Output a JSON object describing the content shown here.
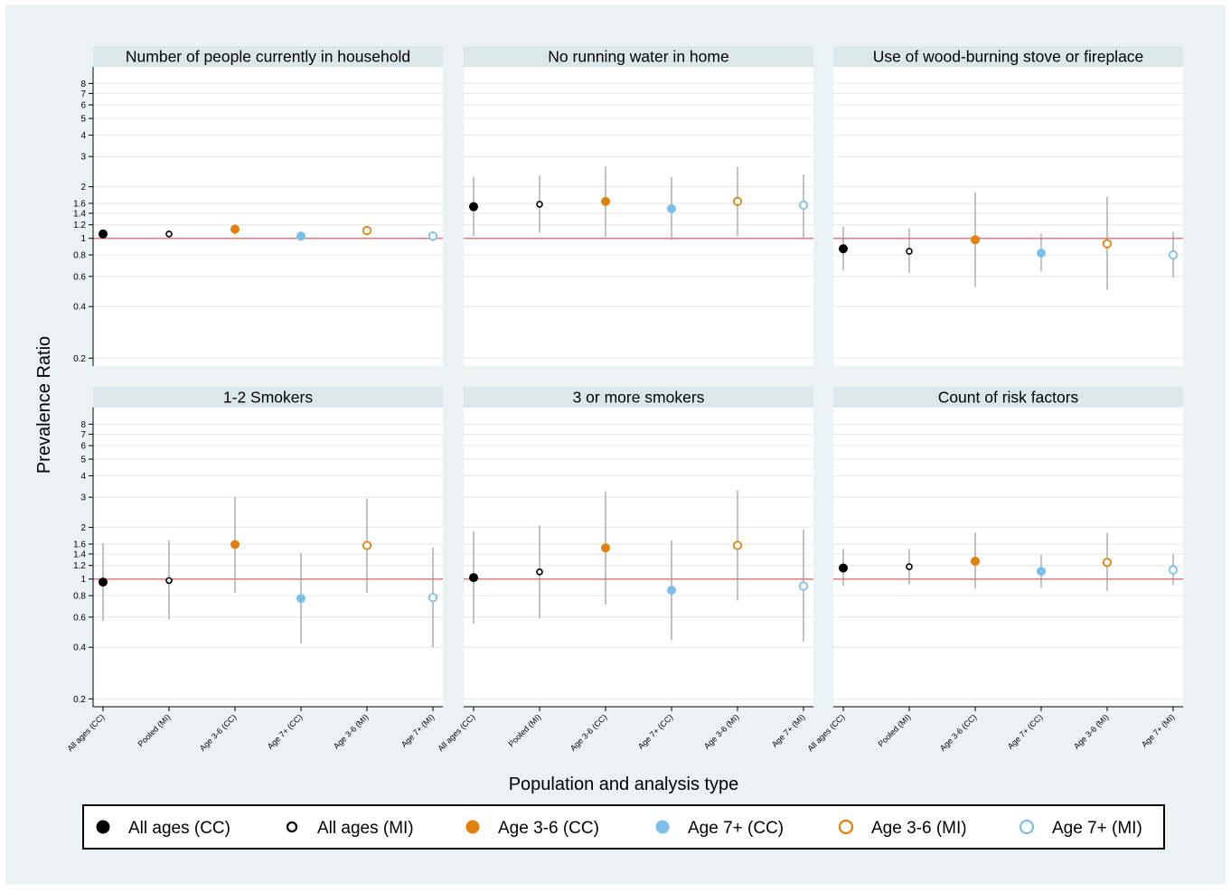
{
  "figure": {
    "ylabel": "Prevalence Ratio",
    "xlabel": "Population and analysis type"
  },
  "colors": {
    "outer_background": "#eaf2f3",
    "strip": "#dce7ec",
    "reference_line": "#e07b7b",
    "grid": "#e6e6e6",
    "ci": "#9a9a9a",
    "black": "#000000",
    "orange": "#e1800d",
    "blue": "#7dbfe8"
  },
  "legend": [
    {
      "label": "All ages (CC)",
      "color": "#000000",
      "fill": true
    },
    {
      "label": "All ages (MI)",
      "color": "#000000",
      "fill": false
    },
    {
      "label": "Age 3-6 (CC)",
      "color": "#e1800d",
      "fill": true
    },
    {
      "label": "Age 7+ (CC)",
      "color": "#7dbfe8",
      "fill": true
    },
    {
      "label": "Age 3-6 (MI)",
      "color": "#e1800d",
      "fill": false
    },
    {
      "label": "Age 7+ (MI)",
      "color": "#7dbfe8",
      "fill": false
    }
  ],
  "chart_data": {
    "type": "scatter",
    "y_scale": "log",
    "ylim": [
      0.18,
      10
    ],
    "yticks": [
      "0.2",
      "0.4",
      "0.6",
      "0.8",
      "1",
      "1.2",
      "1.4",
      "1.6",
      "2",
      "3",
      "4",
      "5",
      "6",
      "7",
      "8"
    ],
    "reference_line": 1,
    "categories": [
      "All ages (CC)",
      "Pooled (MI)",
      "Age 3-6 (CC)",
      "Age 7+ (CC)",
      "Age 3-6 (MI)",
      "Age 7+ (MI)"
    ],
    "panels": [
      {
        "title": "Number of people currently in household",
        "estimates": [
          1.06,
          1.06,
          1.13,
          1.03,
          1.11,
          1.03
        ],
        "ci_lower": [
          1.04,
          1.04,
          1.05,
          0.97,
          1.04,
          0.96
        ],
        "ci_upper": [
          1.08,
          1.08,
          1.2,
          1.09,
          1.18,
          1.1
        ]
      },
      {
        "title": "No running water in home",
        "estimates": [
          1.53,
          1.58,
          1.64,
          1.49,
          1.64,
          1.56
        ],
        "ci_lower": [
          1.03,
          1.08,
          1.02,
          0.98,
          1.03,
          1.01
        ],
        "ci_upper": [
          2.28,
          2.33,
          2.62,
          2.28,
          2.6,
          2.36
        ]
      },
      {
        "title": "Use of wood-burning stove or fireplace",
        "estimates": [
          0.87,
          0.84,
          0.98,
          0.82,
          0.93,
          0.8
        ],
        "ci_lower": [
          0.65,
          0.63,
          0.52,
          0.64,
          0.5,
          0.59
        ],
        "ci_upper": [
          1.17,
          1.14,
          1.86,
          1.06,
          1.75,
          1.09
        ]
      },
      {
        "title": "1-2 Smokers",
        "estimates": [
          0.96,
          0.98,
          1.59,
          0.77,
          1.57,
          0.78
        ],
        "ci_lower": [
          0.57,
          0.58,
          0.83,
          0.42,
          0.83,
          0.4
        ],
        "ci_upper": [
          1.62,
          1.68,
          3.0,
          1.42,
          2.95,
          1.53
        ]
      },
      {
        "title": "3 or more smokers",
        "estimates": [
          1.02,
          1.1,
          1.52,
          0.86,
          1.57,
          0.91
        ],
        "ci_lower": [
          0.55,
          0.59,
          0.71,
          0.44,
          0.75,
          0.43
        ],
        "ci_upper": [
          1.9,
          2.05,
          3.25,
          1.68,
          3.3,
          1.94
        ]
      },
      {
        "title": "Count of risk factors",
        "estimates": [
          1.16,
          1.18,
          1.27,
          1.11,
          1.25,
          1.13
        ],
        "ci_lower": [
          0.91,
          0.93,
          0.88,
          0.89,
          0.85,
          0.92
        ],
        "ci_upper": [
          1.5,
          1.5,
          1.87,
          1.38,
          1.86,
          1.4
        ]
      }
    ]
  }
}
